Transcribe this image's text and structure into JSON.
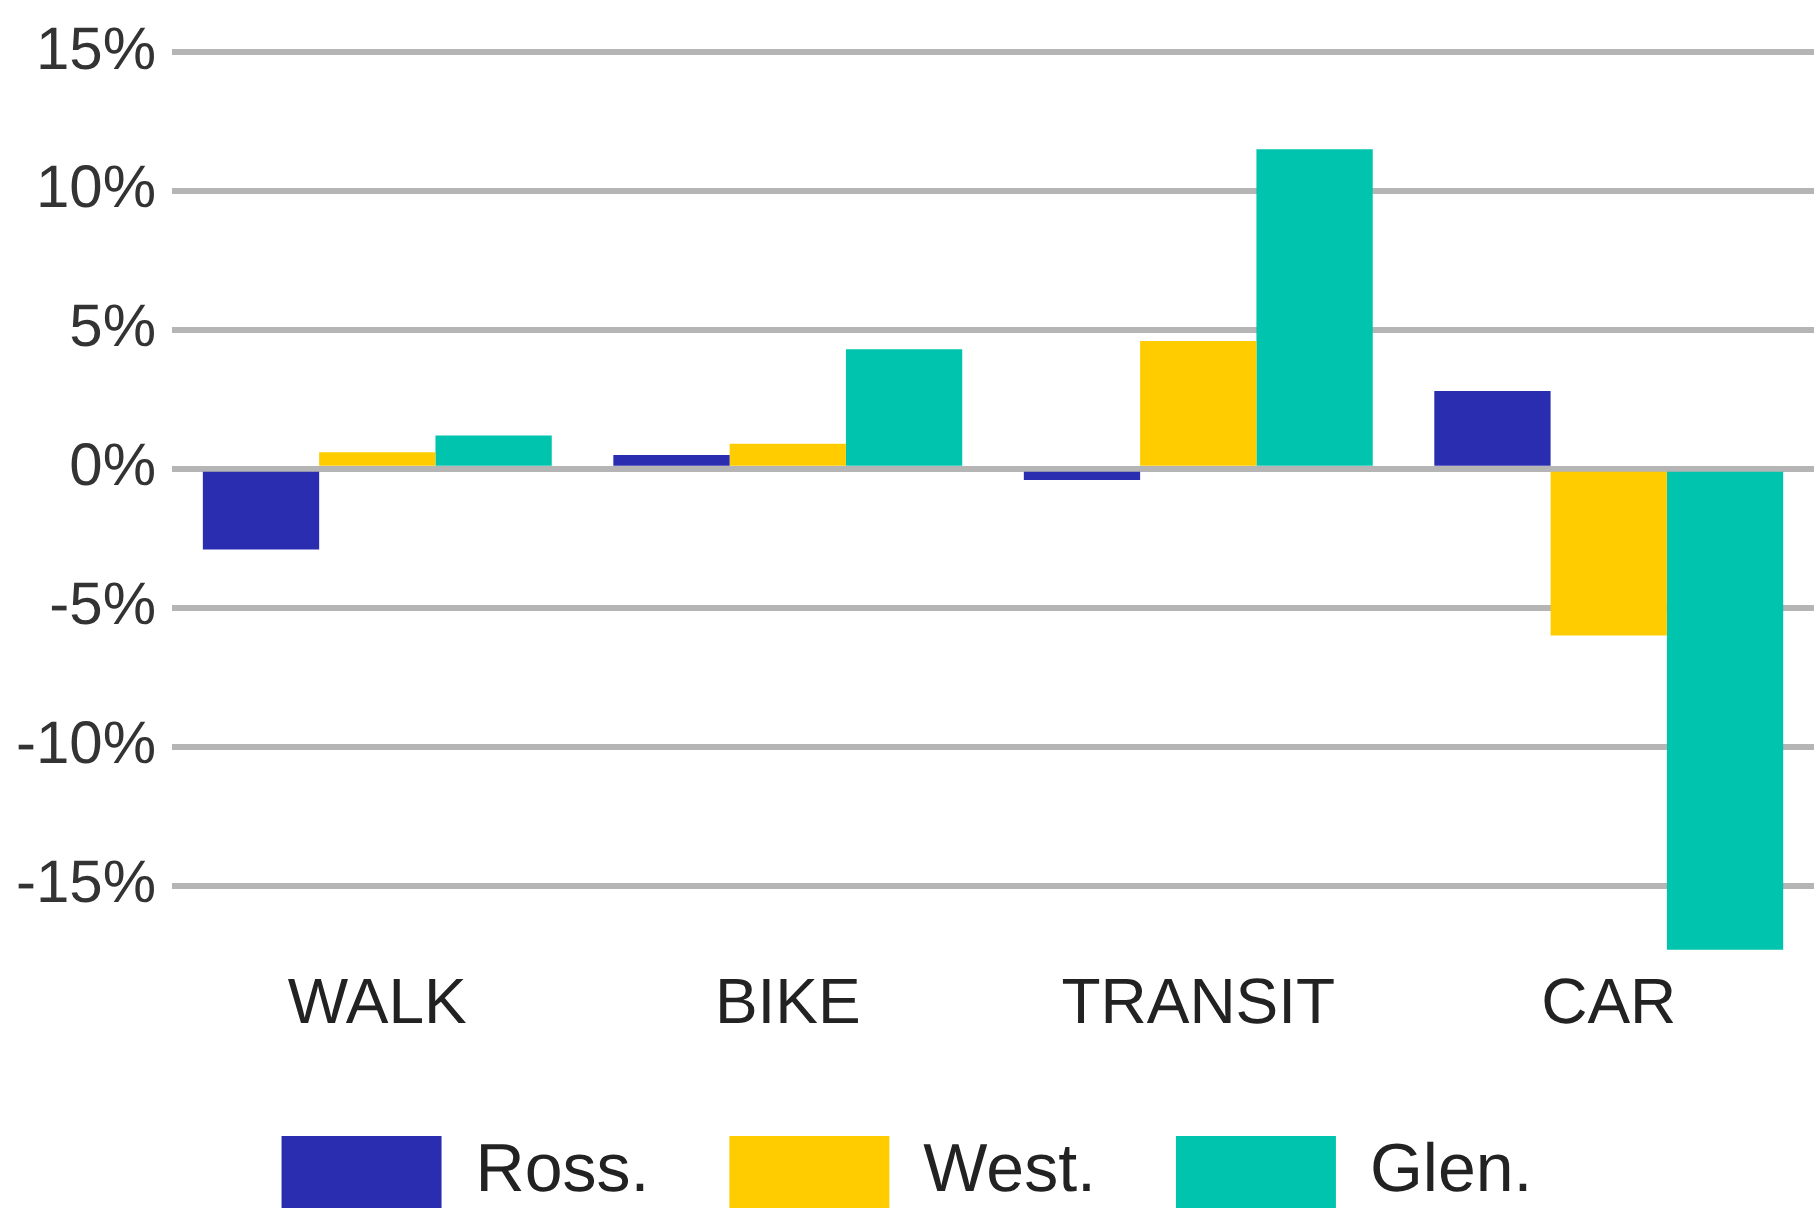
{
  "chart_data": {
    "type": "bar",
    "categories": [
      "WALK",
      "BIKE",
      "TRANSIT",
      "CAR"
    ],
    "series": [
      {
        "name": "Ross.",
        "color": "#2b2db0",
        "values": [
          -2.9,
          0.5,
          -0.4,
          2.8
        ]
      },
      {
        "name": "West.",
        "color": "#ffcc00",
        "values": [
          0.6,
          0.9,
          4.6,
          -6.0
        ]
      },
      {
        "name": "Glen.",
        "color": "#00c4ae",
        "values": [
          1.2,
          4.3,
          11.5,
          -17.3
        ]
      }
    ],
    "ylim": [
      -17.5,
      15
    ],
    "yticks": [
      {
        "value": 15,
        "label": "15%"
      },
      {
        "value": 10,
        "label": "10%"
      },
      {
        "value": 5,
        "label": "5%"
      },
      {
        "value": 0,
        "label": "0%"
      },
      {
        "value": -5,
        "label": "-5%"
      },
      {
        "value": -10,
        "label": "-10%"
      },
      {
        "value": -15,
        "label": "-15%"
      }
    ],
    "grid": "y",
    "legend": "bottom"
  }
}
